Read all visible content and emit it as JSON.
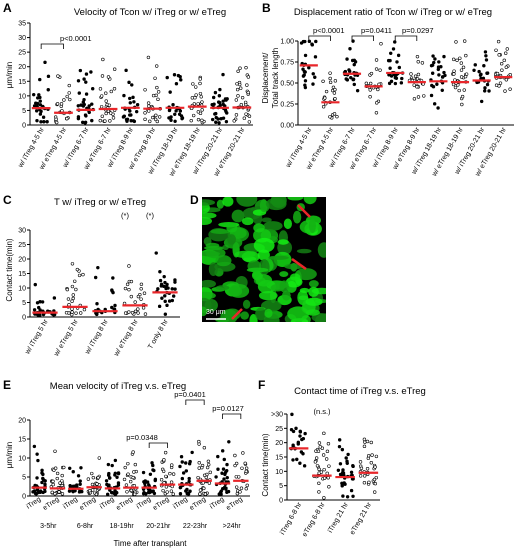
{
  "colors": {
    "median": "#e8262a",
    "dot": "#000000",
    "axis": "#000000",
    "cell": "#2fd12f",
    "arrow": "#e8262a"
  },
  "panels": {
    "A": {
      "label": "A",
      "title": "Velocity of Tcon w/ iTreg or w/ eTreg",
      "ylabel": "μm/min",
      "sig": "p<0.0001"
    },
    "B": {
      "label": "B",
      "title": "Displacement ratio of Tcon w/ iTreg or w/ eTreg",
      "ylabel": "Displacement/\nTotal track length",
      "sig": [
        "p<0.0001",
        "p=0.0411",
        "p=0.0297"
      ]
    },
    "C": {
      "label": "C",
      "title": "T w/ iTreg or w/ eTreg",
      "ylabel": "Contact time(min)",
      "marks": [
        "(*)",
        "(*)"
      ]
    },
    "D": {
      "label": "D",
      "scalebar": "30 μm"
    },
    "E": {
      "label": "E",
      "title": "Mean velocity of iTreg v.s. eTreg",
      "ylabel": "μm/min",
      "xlabel": "Time after transplant",
      "sig": [
        "p=0.0348",
        "p=0.0401",
        "p=0.0127"
      ]
    },
    "F": {
      "label": "F",
      "title": "Contact time of iTreg v.s. eTreg",
      "ylabel": "Contact time(min)",
      "mark": "(n.s.)"
    }
  },
  "chart_data": [
    {
      "panel": "A",
      "type": "scatter",
      "ylim": [
        0,
        35
      ],
      "yticks": [
        "0",
        "5",
        "10",
        "15",
        "20",
        "25",
        "30",
        "35"
      ],
      "categories": [
        "w/ iTreg 4-5 hr",
        "w/ eTreg 4-5 hr",
        "w/ iTreg 6-7 hr",
        "w/ eTreg 6-7 hr",
        "w/ iTreg 8-9 hr",
        "w/ eTreg 8-9 hr",
        "w/ iTreg 18-19 hr",
        "w/ eTreg 18-19 hr",
        "w/ iTreg 20-21 hr",
        "w/ eTreg 20-21 hr"
      ],
      "medians": [
        5.8,
        4.2,
        5.2,
        5.5,
        5.9,
        5.6,
        5.9,
        6.3,
        5.9,
        6.0
      ]
    },
    {
      "panel": "B",
      "type": "scatter",
      "ylim": [
        0,
        1.0
      ],
      "yticks": [
        "0.00",
        "0.25",
        "0.50",
        "0.75",
        "1.00"
      ],
      "categories": [
        "w/ iTreg 4-5 hr",
        "w/ eTreg 4-5 hr",
        "w/ iTreg 6-7 hr",
        "w/ eTreg 6-7 hr",
        "w/ iTreg 8-9 hr",
        "w/ eTreg 8-9 hr",
        "w/ iTreg 18-19 hr",
        "w/ eTreg 18-19 hr",
        "w/ iTreg 20-21 hr",
        "w/ eTreg 20-21 hr"
      ],
      "medians": [
        0.71,
        0.27,
        0.61,
        0.46,
        0.62,
        0.51,
        0.52,
        0.51,
        0.53,
        0.57
      ]
    },
    {
      "panel": "C",
      "type": "scatter",
      "ylim": [
        0,
        30
      ],
      "yticks": [
        "0",
        "5",
        "10",
        "15",
        "20",
        "25",
        "30"
      ],
      "categories": [
        "w/ iTreg 5 hr",
        "w/ eTreg 5 hr",
        "w/ iTreg 8 hr",
        "w/ eTreg 8 hr",
        "T only 8 hr"
      ],
      "medians": [
        1.5,
        3.5,
        2.0,
        4.0,
        8.5
      ]
    },
    {
      "panel": "E",
      "type": "scatter",
      "ylim": [
        0,
        20
      ],
      "yticks": [
        "0",
        "5",
        "10",
        "15",
        "20"
      ],
      "categories": [
        "iTreg",
        "eTreg",
        "iTreg",
        "eTreg",
        "iTreg",
        "eTreg",
        "iTreg",
        "eTreg",
        "iTreg",
        "eTreg",
        "iTreg",
        "eTreg"
      ],
      "groups": [
        "3-5hr",
        "6-8hr",
        "18-19hr",
        "20-21hr",
        "22-23hr",
        ">24hr"
      ],
      "medians": [
        2.2,
        2.0,
        1.9,
        2.3,
        2.0,
        2.2,
        2.2,
        3.0,
        3.0,
        4.0,
        3.3,
        4.0
      ]
    },
    {
      "panel": "F",
      "type": "scatter",
      "ylim": [
        0,
        30
      ],
      "yticks": [
        "0",
        "5",
        "10",
        "15",
        "20",
        "25",
        ">30"
      ],
      "categories": [
        "iTreg 6-8 hr",
        "eTreg 6-8 hr",
        "iTreg 21 hr",
        "eTreg 21 hr"
      ],
      "medians": [
        18.0,
        8.5,
        8.0,
        9.5
      ]
    }
  ]
}
